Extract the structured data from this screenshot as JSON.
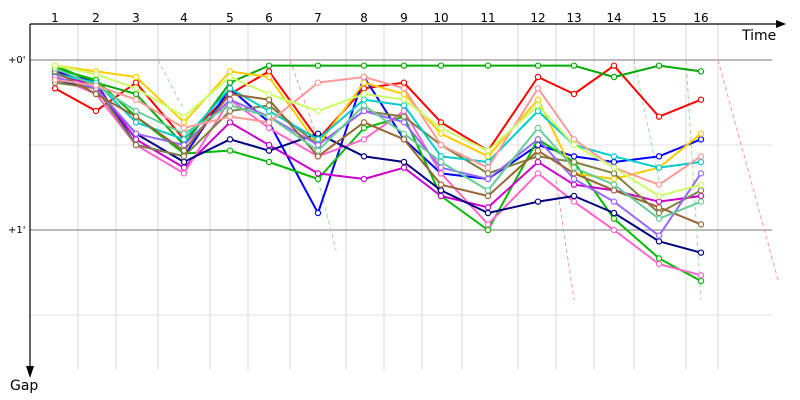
{
  "chart_data": {
    "type": "line",
    "x_title": "Time",
    "y_title": "Gap",
    "x": [
      1,
      2,
      3,
      4,
      5,
      6,
      7,
      8,
      9,
      10,
      11,
      12,
      13,
      14,
      15,
      16
    ],
    "x_tick_labels": [
      "1",
      "2",
      "3",
      "4",
      "5",
      "6",
      "7",
      "8",
      "9",
      "10",
      "11",
      "12",
      "13",
      "14",
      "15",
      "16"
    ],
    "y_tick_labels": [
      "+0'",
      "+1'"
    ],
    "y_ticks": [
      0,
      60
    ],
    "y_unit": "seconds behind leader (downwards)",
    "grid": true,
    "series": [
      {
        "color": "#ff0000",
        "values": [
          10,
          18,
          8,
          28,
          12,
          4,
          28,
          10,
          8,
          22,
          32,
          6,
          12,
          2,
          20,
          14
        ]
      },
      {
        "color": "#00aa00",
        "values": [
          2,
          8,
          12,
          30,
          8,
          2,
          2,
          2,
          2,
          2,
          2,
          2,
          2,
          6,
          2,
          4
        ]
      },
      {
        "color": "#0000ff",
        "values": [
          4,
          8,
          30,
          34,
          10,
          22,
          54,
          6,
          28,
          40,
          42,
          30,
          34,
          36,
          34,
          28
        ]
      },
      {
        "color": "#00bb00",
        "values": [
          3,
          7,
          20,
          33,
          32,
          36,
          42,
          24,
          20,
          48,
          60,
          28,
          36,
          56,
          70,
          78
        ]
      },
      {
        "color": "#cc00cc",
        "values": [
          5,
          9,
          28,
          38,
          22,
          30,
          40,
          42,
          38,
          48,
          52,
          36,
          44,
          46,
          50,
          48
        ]
      },
      {
        "color": "#ff66cc",
        "values": [
          6,
          12,
          30,
          40,
          14,
          24,
          34,
          28,
          18,
          40,
          58,
          40,
          50,
          60,
          72,
          76
        ]
      },
      {
        "color": "#000080",
        "values": [
          7,
          10,
          26,
          36,
          28,
          32,
          26,
          34,
          36,
          46,
          54,
          50,
          48,
          54,
          64,
          68
        ]
      },
      {
        "color": "#ffcc00",
        "values": [
          2,
          4,
          6,
          22,
          4,
          6,
          30,
          8,
          12,
          26,
          34,
          14,
          40,
          42,
          38,
          26
        ]
      },
      {
        "color": "#808040",
        "values": [
          8,
          10,
          30,
          34,
          18,
          16,
          30,
          18,
          20,
          30,
          40,
          34,
          36,
          40,
          54,
          46
        ]
      },
      {
        "color": "#00cccc",
        "values": [
          5,
          8,
          22,
          28,
          10,
          18,
          28,
          14,
          16,
          34,
          36,
          18,
          30,
          34,
          38,
          36
        ]
      },
      {
        "color": "#9966ff",
        "values": [
          6,
          10,
          26,
          30,
          14,
          20,
          30,
          18,
          22,
          38,
          42,
          28,
          42,
          50,
          62,
          40
        ]
      },
      {
        "color": "#996633",
        "values": [
          4,
          12,
          20,
          32,
          12,
          14,
          34,
          22,
          28,
          44,
          48,
          32,
          40,
          46,
          52,
          58
        ]
      },
      {
        "color": "#66cc99",
        "values": [
          3,
          9,
          18,
          26,
          16,
          20,
          32,
          16,
          26,
          36,
          46,
          24,
          38,
          44,
          56,
          50
        ]
      },
      {
        "color": "#ff9999",
        "values": [
          7,
          9,
          14,
          24,
          20,
          22,
          8,
          6,
          10,
          30,
          38,
          10,
          28,
          38,
          44,
          34
        ]
      },
      {
        "color": "#ccff66",
        "values": [
          2,
          5,
          10,
          20,
          6,
          12,
          18,
          12,
          14,
          24,
          32,
          16,
          30,
          38,
          48,
          44
        ]
      }
    ]
  }
}
